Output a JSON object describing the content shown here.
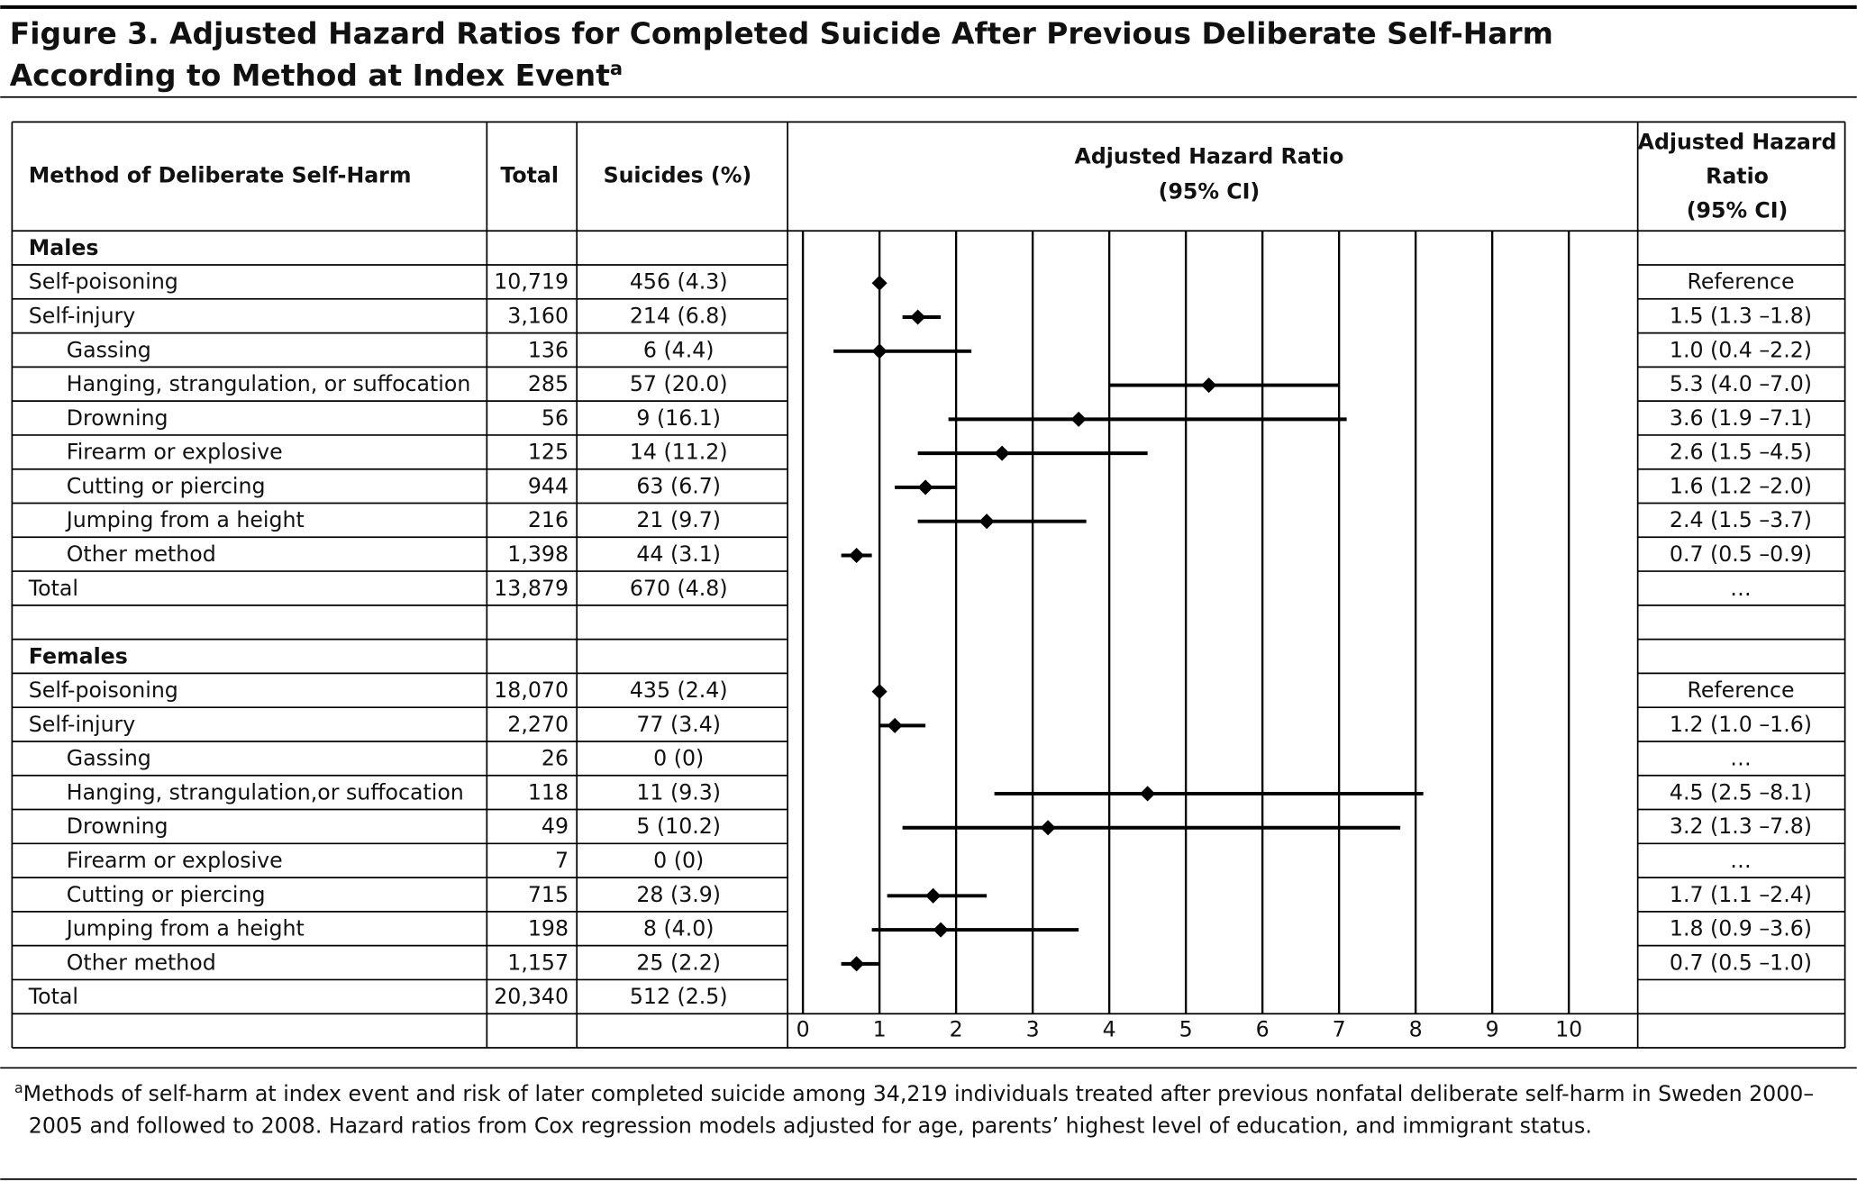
{
  "chart_data": {
    "type": "forest",
    "title": "Figure 3. Adjusted Hazard Ratios for Completed Suicide After Previous Deliberate Self-Harm According to Method at Index Event",
    "title_marker": "a",
    "columns": {
      "method": "Method of Deliberate Self-Harm",
      "total": "Total",
      "suicides": "Suicides (%)",
      "plot": [
        "Adjusted Hazard Ratio",
        "(95% CI)"
      ],
      "estimate": [
        "Adjusted Hazard",
        "Ratio",
        "(95% CI)"
      ]
    },
    "xlim": [
      -0.2,
      10.9
    ],
    "xticks": [
      0,
      1,
      2,
      3,
      4,
      5,
      6,
      7,
      8,
      9,
      10
    ],
    "grid": true,
    "color": "#000000",
    "groups": [
      {
        "name": "Males",
        "rows": [
          {
            "label": "Self-poisoning",
            "indent": false,
            "total": "10,719",
            "suicides": "456 (4.3)",
            "hr": 1,
            "hr_label": "Reference"
          },
          {
            "label": "Self-injury",
            "indent": false,
            "total": "3,160",
            "suicides": "214 (6.8)",
            "hr": 1.5,
            "lo": 1.3,
            "hi": 1.8,
            "hr_label": "1.5 (1.3 –1.8)"
          },
          {
            "label": "Gassing",
            "indent": true,
            "total": "136",
            "suicides": "6 (4.4)",
            "hr": 1.0,
            "lo": 0.4,
            "hi": 2.2,
            "hr_label": "1.0 (0.4 –2.2)"
          },
          {
            "label": "Hanging, strangulation, or suffocation",
            "indent": true,
            "total": "285",
            "suicides": "57 (20.0)",
            "hr": 5.3,
            "lo": 4.0,
            "hi": 7.0,
            "hr_label": "5.3 (4.0 –7.0)"
          },
          {
            "label": "Drowning",
            "indent": true,
            "total": "56",
            "suicides": "9 (16.1)",
            "hr": 3.6,
            "lo": 1.9,
            "hi": 7.1,
            "hr_label": "3.6 (1.9 –7.1)"
          },
          {
            "label": "Firearm or explosive",
            "indent": true,
            "total": "125",
            "suicides": "14 (11.2)",
            "hr": 2.6,
            "lo": 1.5,
            "hi": 4.5,
            "hr_label": "2.6 (1.5 –4.5)"
          },
          {
            "label": "Cutting or piercing",
            "indent": true,
            "total": "944",
            "suicides": "63 (6.7)",
            "hr": 1.6,
            "lo": 1.2,
            "hi": 2.0,
            "hr_label": "1.6 (1.2 –2.0)"
          },
          {
            "label": "Jumping from a height",
            "indent": true,
            "total": "216",
            "suicides": "21 (9.7)",
            "hr": 2.4,
            "lo": 1.5,
            "hi": 3.7,
            "hr_label": "2.4 (1.5 –3.7)"
          },
          {
            "label": "Other method",
            "indent": true,
            "total": "1,398",
            "suicides": "44 (3.1)",
            "hr": 0.7,
            "lo": 0.5,
            "hi": 0.9,
            "hr_label": "0.7 (0.5 –0.9)"
          },
          {
            "label": "Total",
            "indent": false,
            "total": "13,879",
            "suicides": "670 (4.8)",
            "hr_label": "…"
          }
        ]
      },
      {
        "name": "Females",
        "rows": [
          {
            "label": "Self-poisoning",
            "indent": false,
            "total": "18,070",
            "suicides": "435 (2.4)",
            "hr": 1,
            "hr_label": "Reference"
          },
          {
            "label": "Self-injury",
            "indent": false,
            "total": "2,270",
            "suicides": "77 (3.4)",
            "hr": 1.2,
            "lo": 1.0,
            "hi": 1.6,
            "hr_label": "1.2 (1.0 –1.6)"
          },
          {
            "label": "Gassing",
            "indent": true,
            "total": "26",
            "suicides": "0 (0)",
            "hr_label": "…"
          },
          {
            "label": "Hanging, strangulation,or suffocation",
            "indent": true,
            "total": "118",
            "suicides": "11 (9.3)",
            "hr": 4.5,
            "lo": 2.5,
            "hi": 8.1,
            "hr_label": "4.5 (2.5 –8.1)"
          },
          {
            "label": "Drowning",
            "indent": true,
            "total": "49",
            "suicides": "5 (10.2)",
            "hr": 3.2,
            "lo": 1.3,
            "hi": 7.8,
            "hr_label": "3.2 (1.3 –7.8)"
          },
          {
            "label": "Firearm or explosive",
            "indent": true,
            "total": "7",
            "suicides": "0 (0)",
            "hr_label": "…"
          },
          {
            "label": "Cutting or piercing",
            "indent": true,
            "total": "715",
            "suicides": "28 (3.9)",
            "hr": 1.7,
            "lo": 1.1,
            "hi": 2.4,
            "hr_label": "1.7 (1.1 –2.4)"
          },
          {
            "label": "Jumping from a height",
            "indent": true,
            "total": "198",
            "suicides": "8 (4.0)",
            "hr": 1.8,
            "lo": 0.9,
            "hi": 3.6,
            "hr_label": "1.8 (0.9 –3.6)"
          },
          {
            "label": "Other method",
            "indent": true,
            "total": "1,157",
            "suicides": "25 (2.2)",
            "hr": 0.7,
            "lo": 0.5,
            "hi": 1.0,
            "hr_label": "0.7 (0.5 –1.0)"
          },
          {
            "label": "Total",
            "indent": false,
            "total": "20,340",
            "suicides": "512 (2.5)"
          }
        ]
      }
    ],
    "footnote_marker": "a",
    "footnote": "Methods of self-harm at index event and risk of later completed suicide among 34,219 individuals treated after previous nonfatal deliberate self-harm in Sweden 2000–2005 and followed to 2008. Hazard ratios from Cox regression models adjusted for age, parents’ highest level of education, and immigrant status."
  }
}
